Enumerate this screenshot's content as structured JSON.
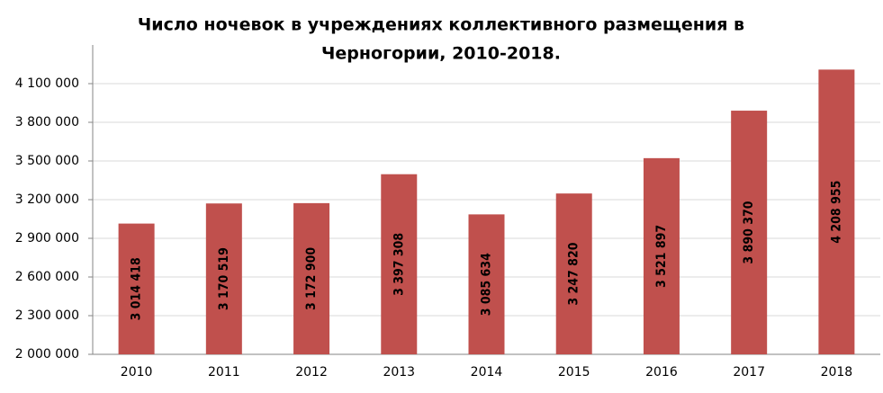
{
  "chart_data": {
    "type": "bar",
    "title": [
      "Число ночевок в учреждениях коллективного размещения в",
      "Черногории, 2010-2018."
    ],
    "categories": [
      "2010",
      "2011",
      "2012",
      "2013",
      "2014",
      "2015",
      "2016",
      "2017",
      "2018"
    ],
    "values": [
      3014418,
      3170519,
      3172900,
      3397308,
      3085634,
      3247820,
      3521897,
      3890370,
      4208955
    ],
    "value_labels": [
      "3 014 418",
      "3 170 519",
      "3 172 900",
      "3 397 308",
      "3 085 634",
      "3 247 820",
      "3 521 897",
      "3 890 370",
      "4 208 955"
    ],
    "color": "#c0504d",
    "ylim": [
      2000000,
      4400000
    ],
    "yticks": [
      {
        "value": 2000000,
        "label": "2 000 000"
      },
      {
        "value": 2300000,
        "label": "2 300 000"
      },
      {
        "value": 2600000,
        "label": "2 600 000"
      },
      {
        "value": 2900000,
        "label": "2 900 000"
      },
      {
        "value": 3200000,
        "label": "3 200 000"
      },
      {
        "value": 3500000,
        "label": "3 500 000"
      },
      {
        "value": 3800000,
        "label": "3 800 000"
      },
      {
        "value": 4100000,
        "label": "4 100 000"
      }
    ],
    "grid": true
  }
}
